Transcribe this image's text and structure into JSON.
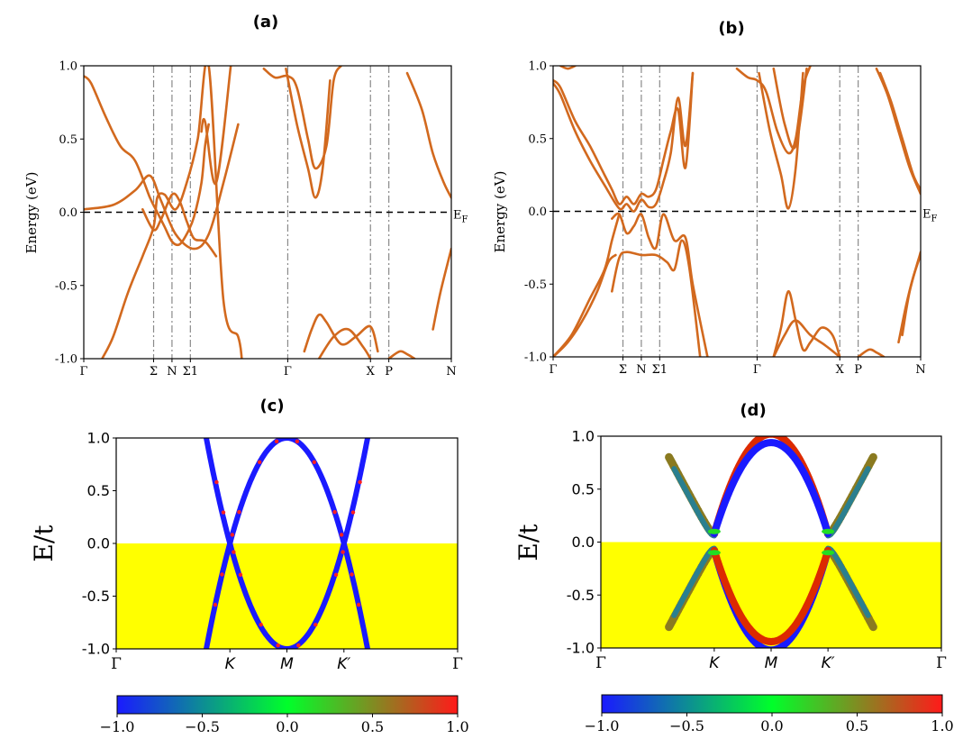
{
  "chart_data": [
    {
      "id": "a",
      "type": "line",
      "title": "(a)",
      "ylabel": "Energy (eV)",
      "xlabel": "",
      "ylim": [
        -1.0,
        1.0
      ],
      "yticks": [
        "1.0",
        "0.5",
        "0.0",
        "-0.5",
        "-1.0"
      ],
      "ytick_values": [
        1.0,
        0.5,
        0.0,
        -0.5,
        -1.0
      ],
      "kpath": [
        "Γ",
        "Σ",
        "N",
        "Σ1",
        "Γ",
        "X",
        "P",
        "N"
      ],
      "kpath_positions": [
        0.0,
        0.19,
        0.24,
        0.29,
        0.555,
        0.78,
        0.83,
        1.0
      ],
      "fermi_label": "E",
      "fermi_sub": "F",
      "color": "#d2691e",
      "series": [
        {
          "name": "band1",
          "x": [
            0,
            0.02,
            0.06,
            0.1,
            0.14,
            0.18,
            0.2,
            0.22,
            0.24,
            0.26,
            0.28,
            0.3,
            0.32,
            0.33,
            0.34
          ],
          "y": [
            0.93,
            0.88,
            0.65,
            0.45,
            0.35,
            0.1,
            0.0,
            -0.1,
            -0.2,
            -0.22,
            -0.15,
            -0.03,
            0.2,
            0.45,
            0.6
          ]
        },
        {
          "name": "band2",
          "x": [
            0.16,
            0.19,
            0.21,
            0.24,
            0.26,
            0.28,
            0.3,
            0.33,
            0.36
          ],
          "y": [
            0.02,
            -0.12,
            -0.05,
            0.12,
            0.08,
            -0.06,
            -0.18,
            -0.2,
            -0.3
          ]
        },
        {
          "name": "band3",
          "x": [
            0.0,
            0.08,
            0.14,
            0.18,
            0.21,
            0.25,
            0.3,
            0.34,
            0.38,
            0.42
          ],
          "y": [
            0.02,
            0.05,
            0.15,
            0.25,
            0.08,
            -0.15,
            -0.25,
            -0.15,
            0.2,
            0.6
          ]
        },
        {
          "name": "band4",
          "x": [
            0.05,
            0.08,
            0.12,
            0.16,
            0.19,
            0.2,
            0.22,
            0.25,
            0.28,
            0.31,
            0.34,
            0.38,
            0.42,
            0.43
          ],
          "y": [
            -1.0,
            -0.85,
            -0.55,
            -0.3,
            -0.1,
            0.1,
            0.12,
            0.02,
            0.2,
            0.5,
            1.0,
            -0.6,
            -0.85,
            -1.0
          ]
        },
        {
          "name": "band5",
          "x": [
            0.32,
            0.33,
            0.36,
            0.4
          ],
          "y": [
            0.55,
            0.62,
            0.2,
            1.0
          ]
        },
        {
          "name": "band6",
          "x": [
            0.49,
            0.52,
            0.555,
            0.58,
            0.61,
            0.63,
            0.66,
            0.68,
            0.7
          ],
          "y": [
            0.98,
            0.92,
            0.93,
            0.85,
            0.5,
            0.3,
            0.45,
            0.9,
            1.0
          ]
        },
        {
          "name": "band7",
          "x": [
            0.55,
            0.58,
            0.61,
            0.63,
            0.65,
            0.67
          ],
          "y": [
            0.98,
            0.6,
            0.3,
            0.1,
            0.3,
            0.9
          ]
        },
        {
          "name": "band8",
          "x": [
            0.6,
            0.62,
            0.64,
            0.66,
            0.7,
            0.74,
            0.78,
            0.8
          ],
          "y": [
            -0.95,
            -0.8,
            -0.7,
            -0.75,
            -0.9,
            -0.85,
            -0.78,
            -0.95
          ]
        },
        {
          "name": "band9",
          "x": [
            0.64,
            0.68,
            0.72,
            0.76,
            0.78
          ],
          "y": [
            -1.0,
            -0.85,
            -0.8,
            -0.92,
            -1.0
          ]
        },
        {
          "name": "band10",
          "x": [
            0.88,
            0.92,
            0.95,
            0.98,
            1.0
          ],
          "y": [
            0.95,
            0.7,
            0.4,
            0.2,
            0.1
          ]
        },
        {
          "name": "band11",
          "x": [
            0.95,
            0.97,
            1.0
          ],
          "y": [
            -0.8,
            -0.55,
            -0.25
          ]
        },
        {
          "name": "band12",
          "x": [
            0.83,
            0.86,
            0.88,
            0.9
          ],
          "y": [
            -1.0,
            -0.95,
            -0.97,
            -1.0
          ]
        }
      ]
    },
    {
      "id": "b",
      "type": "line",
      "title": "(b)",
      "ylabel": "Energy (eV)",
      "xlabel": "",
      "ylim": [
        -1.0,
        1.0
      ],
      "yticks": [
        "1.0",
        "0.5",
        "0.0",
        "-0.5",
        "-1.0"
      ],
      "ytick_values": [
        1.0,
        0.5,
        0.0,
        -0.5,
        -1.0
      ],
      "kpath": [
        "Γ",
        "Σ",
        "N",
        "Σ1",
        "Γ",
        "X",
        "P",
        "N"
      ],
      "kpath_positions": [
        0.0,
        0.19,
        0.24,
        0.29,
        0.555,
        0.78,
        0.83,
        1.0
      ],
      "fermi_label": "E",
      "fermi_sub": "F",
      "color": "#d2691e",
      "series": [
        {
          "name": "band1",
          "x": [
            0,
            0.02,
            0.06,
            0.1,
            0.14,
            0.16,
            0.18,
            0.2,
            0.22,
            0.24,
            0.26,
            0.28,
            0.3,
            0.32,
            0.34,
            0.36,
            0.38
          ],
          "y": [
            0.9,
            0.85,
            0.62,
            0.45,
            0.25,
            0.15,
            0.05,
            0.1,
            0.05,
            0.12,
            0.1,
            0.15,
            0.35,
            0.55,
            0.7,
            0.3,
            0.95
          ]
        },
        {
          "name": "band2",
          "x": [
            0,
            0.02,
            0.06,
            0.1,
            0.14,
            0.18,
            0.2,
            0.22,
            0.24,
            0.26,
            0.28,
            0.3,
            0.32,
            0.34,
            0.36,
            0.38
          ],
          "y": [
            0.88,
            0.8,
            0.55,
            0.35,
            0.18,
            0.02,
            0.05,
            0.0,
            0.08,
            0.03,
            0.05,
            0.2,
            0.4,
            0.78,
            0.45,
            0.95
          ]
        },
        {
          "name": "band3",
          "x": [
            0.16,
            0.18,
            0.2,
            0.22,
            0.24,
            0.26,
            0.28,
            0.3,
            0.33,
            0.36,
            0.38,
            0.42
          ],
          "y": [
            -0.05,
            -0.02,
            -0.15,
            -0.1,
            -0.02,
            -0.18,
            -0.25,
            -0.02,
            -0.2,
            -0.18,
            -0.5,
            -1.0
          ]
        },
        {
          "name": "band4",
          "x": [
            0.16,
            0.18,
            0.2,
            0.24,
            0.28,
            0.31,
            0.33,
            0.35,
            0.37,
            0.4
          ],
          "y": [
            -0.55,
            -0.32,
            -0.28,
            -0.3,
            -0.3,
            -0.35,
            -0.4,
            -0.2,
            -0.38,
            -1.0
          ]
        },
        {
          "name": "band5",
          "x": [
            0.0,
            0.05,
            0.1,
            0.14,
            0.16,
            0.18
          ],
          "y": [
            -1.0,
            -0.85,
            -0.6,
            -0.4,
            -0.2,
            -0.02
          ]
        },
        {
          "name": "band6",
          "x": [
            0.0,
            0.04,
            0.08,
            0.12,
            0.15,
            0.17
          ],
          "y": [
            -1.0,
            -0.9,
            -0.75,
            -0.55,
            -0.35,
            -0.3
          ]
        },
        {
          "name": "band7",
          "x": [
            0.5,
            0.53,
            0.555,
            0.58,
            0.61,
            0.64,
            0.66,
            0.68,
            0.7
          ],
          "y": [
            0.98,
            0.92,
            0.9,
            0.82,
            0.55,
            0.4,
            0.5,
            0.85,
            1.0
          ]
        },
        {
          "name": "band8",
          "x": [
            0.56,
            0.59,
            0.62,
            0.64,
            0.66,
            0.68
          ],
          "y": [
            0.95,
            0.55,
            0.25,
            0.02,
            0.3,
            0.95
          ]
        },
        {
          "name": "band9",
          "x": [
            0.6,
            0.63,
            0.66,
            0.69
          ],
          "y": [
            0.98,
            0.6,
            0.45,
            0.98
          ]
        },
        {
          "name": "band10",
          "x": [
            0.6,
            0.62,
            0.64,
            0.66,
            0.68,
            0.7,
            0.73,
            0.76,
            0.78
          ],
          "y": [
            -1.0,
            -0.8,
            -0.55,
            -0.75,
            -0.95,
            -0.9,
            -0.8,
            -0.85,
            -1.0
          ]
        },
        {
          "name": "band11",
          "x": [
            0.6,
            0.63,
            0.66,
            0.7,
            0.74,
            0.78
          ],
          "y": [
            -1.0,
            -0.85,
            -0.75,
            -0.85,
            -0.92,
            -1.0
          ]
        },
        {
          "name": "band12",
          "x": [
            0.88,
            0.91,
            0.94,
            0.97,
            1.0
          ],
          "y": [
            0.98,
            0.8,
            0.55,
            0.3,
            0.12
          ]
        },
        {
          "name": "band13",
          "x": [
            0.89,
            0.92,
            0.95,
            0.98,
            1.0
          ],
          "y": [
            0.95,
            0.75,
            0.5,
            0.25,
            0.15
          ]
        },
        {
          "name": "band14",
          "x": [
            0.95,
            0.97,
            1.0
          ],
          "y": [
            -0.85,
            -0.55,
            -0.28
          ]
        },
        {
          "name": "band15",
          "x": [
            0.94,
            0.96,
            0.98,
            1.0
          ],
          "y": [
            -0.9,
            -0.65,
            -0.45,
            -0.3
          ]
        },
        {
          "name": "band16",
          "x": [
            0.83,
            0.86,
            0.88,
            0.9
          ],
          "y": [
            -1.0,
            -0.95,
            -0.97,
            -1.0
          ]
        },
        {
          "name": "band17",
          "x": [
            0.02,
            0.04,
            0.06
          ],
          "y": [
            1.0,
            0.98,
            1.0
          ]
        }
      ]
    },
    {
      "id": "c",
      "type": "line",
      "title": "(c)",
      "ylabel": "E/t",
      "ylim": [
        -1.0,
        1.0
      ],
      "yticks": [
        "1.0",
        "0.5",
        "0.0",
        "-0.5",
        "-1.0"
      ],
      "ytick_values": [
        1.0,
        0.5,
        0.0,
        -0.5,
        -1.0
      ],
      "kpath": [
        "Γ",
        "K",
        "M",
        "K′",
        "Γ"
      ],
      "kpath_positions": [
        0.0,
        0.333,
        0.5,
        0.667,
        1.0
      ],
      "band_color": "#1a1aff",
      "dot_color": "#ff2020",
      "fill_color": "#ffff00",
      "fill_range": [
        -1.0,
        0.0
      ],
      "gap": 0.0,
      "colorbar": {
        "ticks": [
          "−1.0",
          "−0.5",
          "0.0",
          "0.5",
          "1.0"
        ],
        "colors": [
          "#1a1aff",
          "#00ff2a",
          "#ff1a1a"
        ]
      }
    },
    {
      "id": "d",
      "type": "line",
      "title": "(d)",
      "ylabel": "E/t",
      "ylim": [
        -1.0,
        1.0
      ],
      "yticks": [
        "1.0",
        "0.5",
        "0.0",
        "-0.5",
        "-1.0"
      ],
      "ytick_values": [
        1.0,
        0.5,
        0.0,
        -0.5,
        -1.0
      ],
      "kpath": [
        "Γ",
        "K",
        "M",
        "K′",
        "Γ"
      ],
      "kpath_positions": [
        0.0,
        0.333,
        0.5,
        0.667,
        1.0
      ],
      "outer_color": "#2a7f8f",
      "outer_color2": "#8a7a20",
      "inner_upper_color": "#dd2a00",
      "inner_lower_color": "#1a1aff",
      "fill_color": "#ffff00",
      "fill_range": [
        -1.0,
        0.0
      ],
      "gap": 0.08,
      "colorbar": {
        "ticks": [
          "−1.0",
          "−0.5",
          "0.0",
          "0.5",
          "1.0"
        ],
        "colors": [
          "#1a1aff",
          "#00ff2a",
          "#ff1a1a"
        ]
      }
    }
  ]
}
